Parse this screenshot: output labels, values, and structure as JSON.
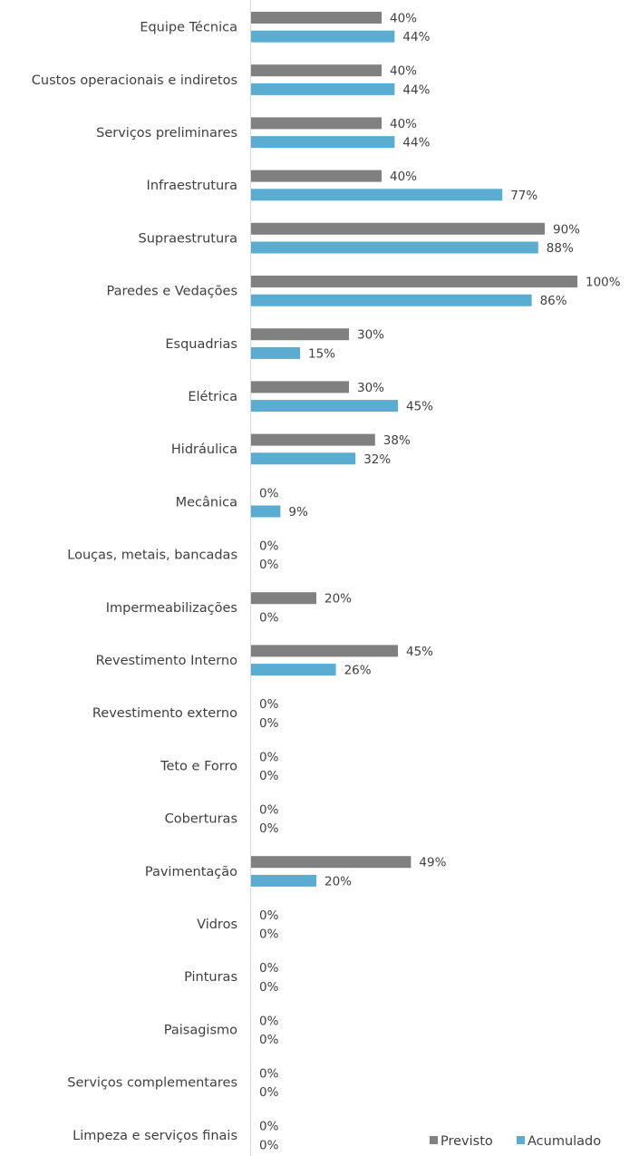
{
  "chart_data": {
    "type": "bar",
    "orientation": "horizontal",
    "categories": [
      "Equipe Técnica",
      "Custos operacionais e indiretos",
      "Serviços preliminares",
      "Infraestrutura",
      "Supraestrutura",
      "Paredes e Vedações",
      "Esquadrias",
      "Elétrica",
      "Hidráulica",
      "Mecânica",
      "Louças, metais, bancadas",
      "Impermeabilizações",
      "Revestimento Interno",
      "Revestimento externo",
      "Teto e Forro",
      "Coberturas",
      "Pavimentação",
      "Vidros",
      "Pinturas",
      "Paisagismo",
      "Serviços complementares",
      "Limpeza e serviços finais"
    ],
    "series": [
      {
        "name": "Previsto",
        "color": "#808080",
        "values": [
          40,
          40,
          40,
          40,
          90,
          100,
          30,
          30,
          38,
          0,
          0,
          20,
          45,
          0,
          0,
          0,
          49,
          0,
          0,
          0,
          0,
          0
        ],
        "labels": [
          "40%",
          "40%",
          "40%",
          "40%",
          "90%",
          "100%",
          "30%",
          "30%",
          "38%",
          "0%",
          "0%",
          "20%",
          "45%",
          "0%",
          "0%",
          "0%",
          "49%",
          "0%",
          "0%",
          "0%",
          "0%",
          "0%"
        ]
      },
      {
        "name": "Acumulado",
        "color": "#5BACD1",
        "values": [
          44,
          44,
          44,
          77,
          88,
          86,
          15,
          45,
          32,
          9,
          0,
          0,
          26,
          0,
          0,
          0,
          20,
          0,
          0,
          0,
          0,
          0
        ],
        "labels": [
          "44%",
          "44%",
          "44%",
          "77%",
          "88%",
          "86%",
          "15%",
          "45%",
          "32%",
          "9%",
          "0%",
          "0%",
          "26%",
          "0%",
          "0%",
          "0%",
          "20%",
          "0%",
          "0%",
          "0%",
          "0%",
          "0%"
        ]
      }
    ],
    "xlim": [
      0,
      100
    ],
    "unit": "%",
    "grid": false,
    "legend_position": "bottom-right"
  }
}
